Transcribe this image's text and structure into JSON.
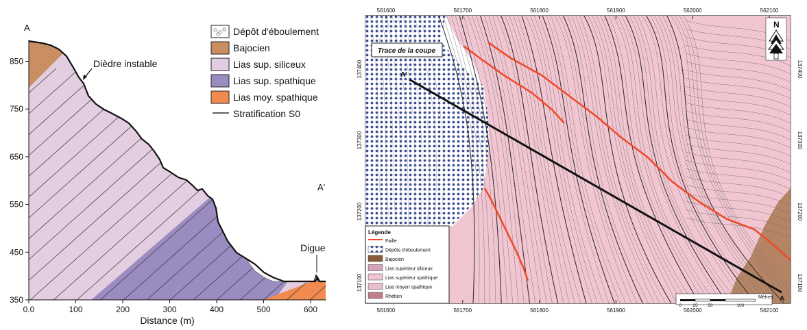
{
  "cross_section": {
    "label_a": "A",
    "label_a_prime": "A'",
    "annotation_diedre": "Dièdre instable",
    "annotation_digue": "Digue",
    "x_label": "Distance (m)",
    "x_ticks": [
      "0.0",
      "100",
      "200",
      "300",
      "400",
      "500",
      "600"
    ],
    "y_ticks": [
      "350",
      "450",
      "550",
      "650",
      "750",
      "850"
    ],
    "legend": [
      {
        "label": "Dépôt d'éboulement",
        "color": "#ffffff",
        "pattern": "stones"
      },
      {
        "label": "Bajocien",
        "color": "#c98f62"
      },
      {
        "label": "Lias sup. siliceux",
        "color": "#e3cde0"
      },
      {
        "label": "Lias sup. spathique",
        "color": "#9a8cc0"
      },
      {
        "label": "Lias moy. spathique",
        "color": "#f08a4e"
      },
      {
        "label": "Stratification S0",
        "color": "#000000",
        "pattern": "line"
      }
    ]
  },
  "map": {
    "trace_label": "Trace de la coupe",
    "label_a": "A",
    "label_a_prime": "A'",
    "x_ticks": [
      "561600",
      "561700",
      "561800",
      "561900",
      "562000",
      "562100"
    ],
    "y_ticks": [
      "137400",
      "137300",
      "137200",
      "137100"
    ],
    "north_label": "N",
    "scale_title": "Mètres",
    "scale_ticks": [
      "0",
      "25",
      "50",
      "100"
    ],
    "legend_title": "Légende",
    "legend": [
      {
        "label": "Faille",
        "color": "#ef4b2a",
        "pattern": "line"
      },
      {
        "label": "Dépôts d'éboulement",
        "color": "#3b4f9a",
        "pattern": "dots"
      },
      {
        "label": "Bajocien",
        "color": "#8a5a3c"
      },
      {
        "label": "Lias supérieur siliceux",
        "color": "#d7a3b8"
      },
      {
        "label": "Lias supérieur spathique",
        "color": "#f2c6cf",
        "pattern": "hatch"
      },
      {
        "label": "Lias moyen spathique",
        "color": "#e9bfd0"
      },
      {
        "label": "Rhétien",
        "color": "#c07d8c"
      }
    ]
  }
}
